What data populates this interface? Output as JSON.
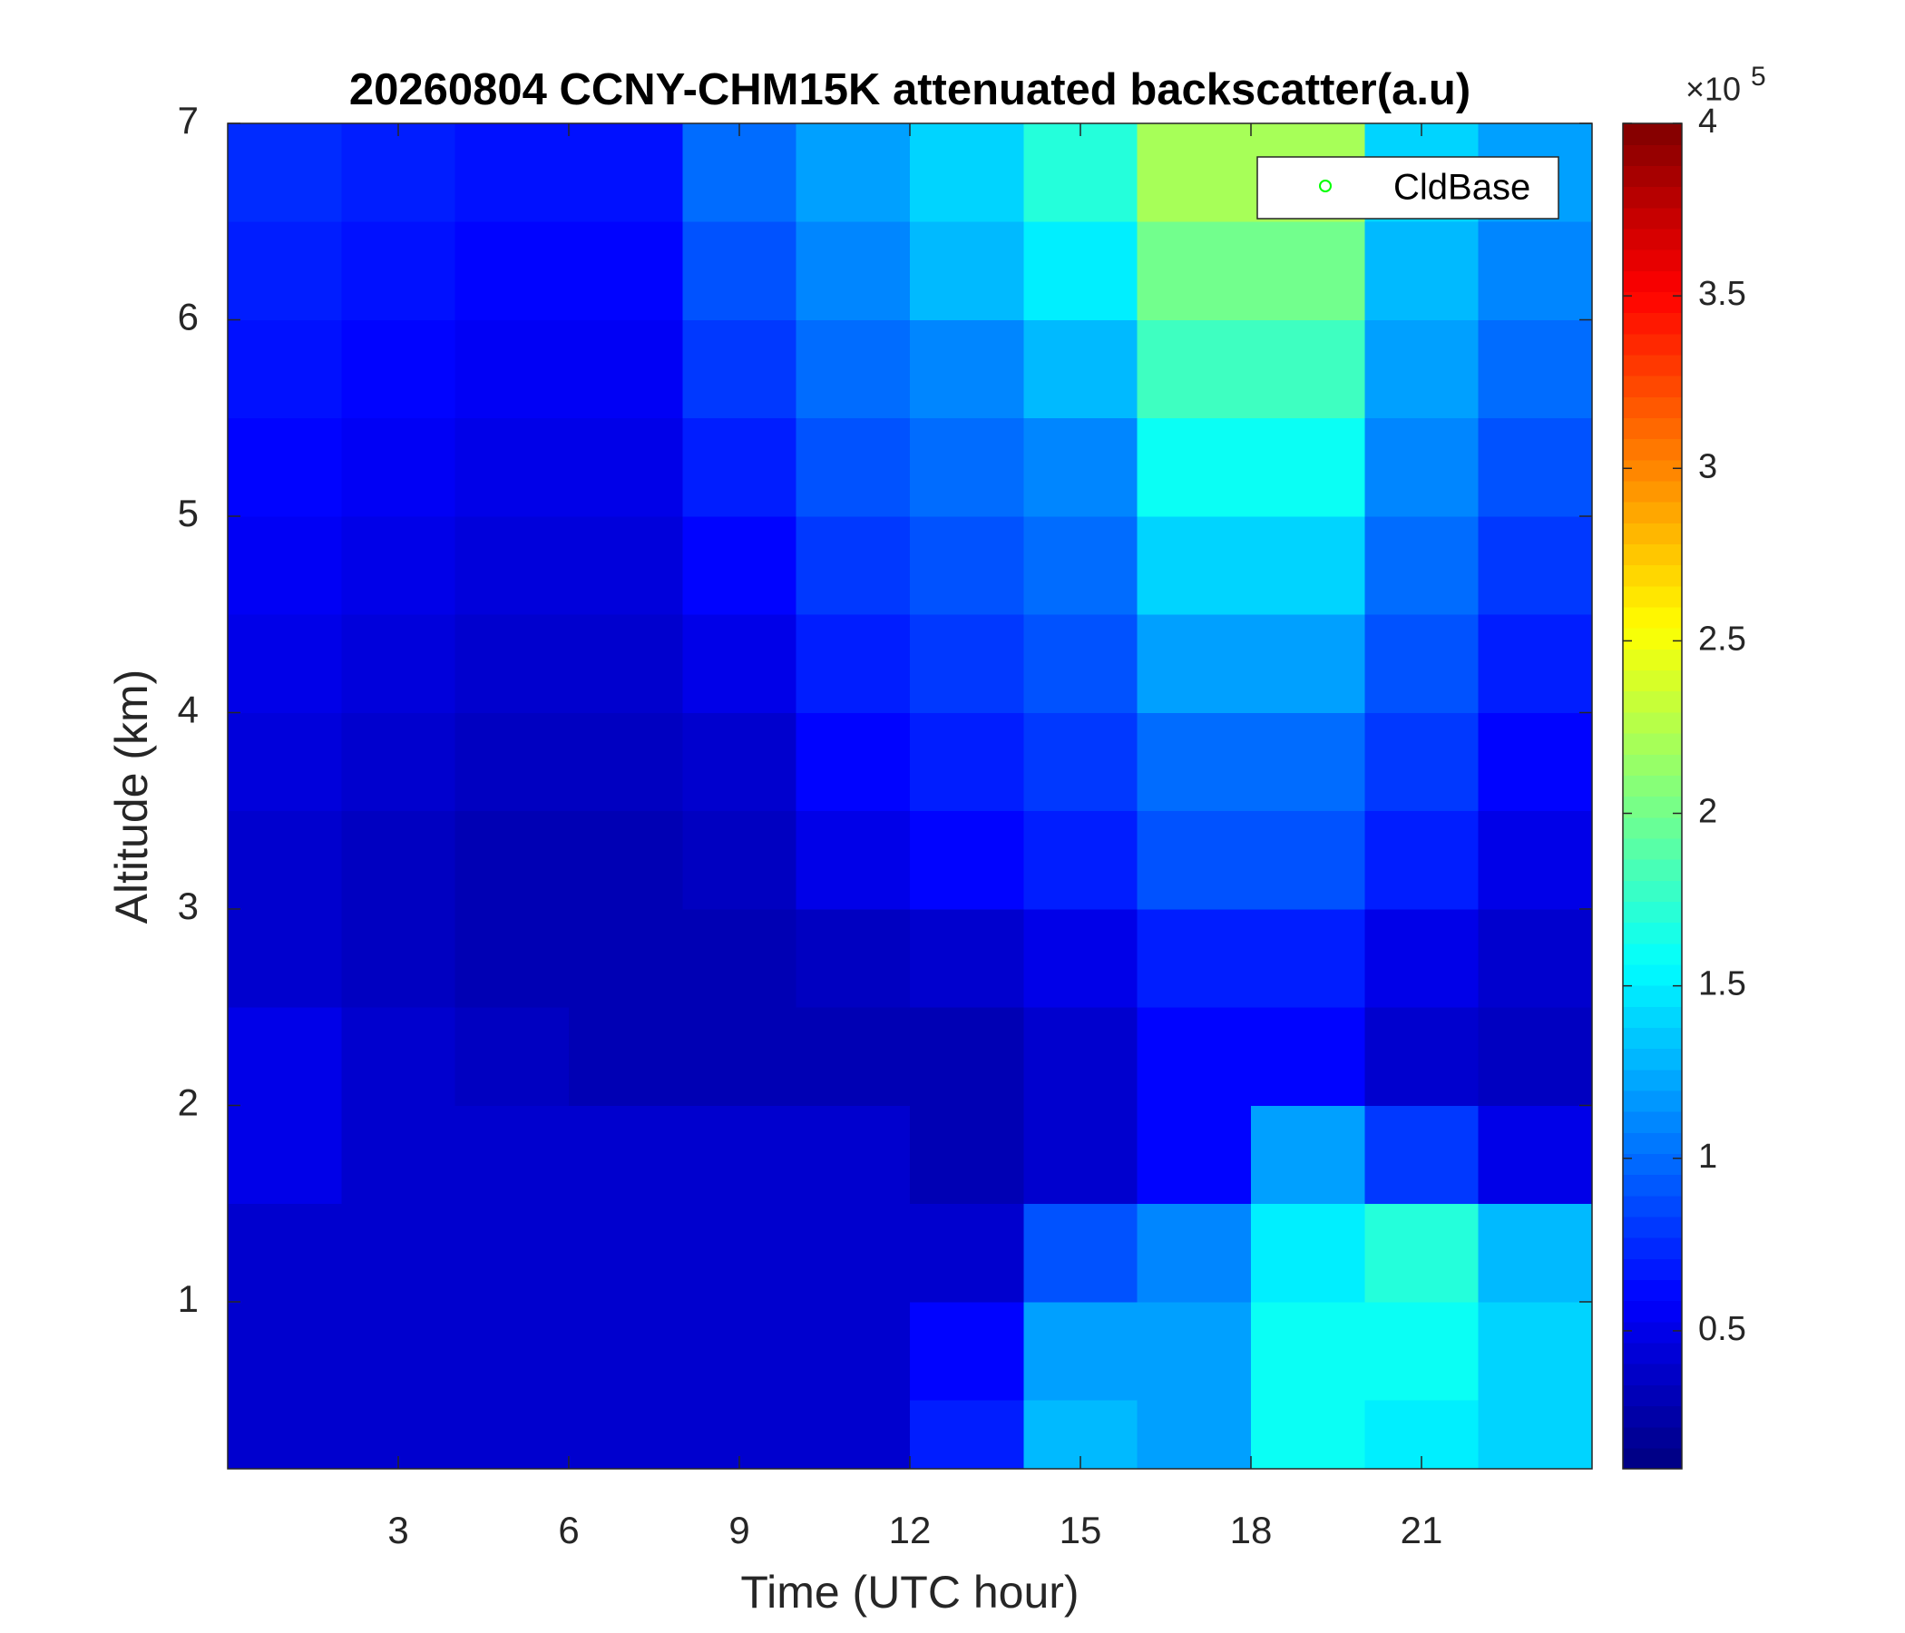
{
  "chart_data": {
    "type": "heatmap",
    "title": "20260804 CCNY-CHM15K attenuated backscatter(a.u)",
    "xlabel": "Time (UTC hour)",
    "ylabel": "Altitude (km)",
    "x_bins": [
      0,
      2,
      4,
      6,
      8,
      10,
      12,
      14,
      16,
      18,
      20,
      22,
      24
    ],
    "y_bins": [
      0.15,
      0.5,
      1,
      1.5,
      2,
      2.5,
      3,
      3.5,
      4,
      4.5,
      5,
      5.5,
      6,
      6.5,
      7
    ],
    "z": [
      [
        0.4,
        0.4,
        0.4,
        0.4,
        0.4,
        0.4,
        0.7,
        1.3,
        1.2,
        1.6,
        1.5,
        1.4
      ],
      [
        0.4,
        0.4,
        0.4,
        0.4,
        0.4,
        0.4,
        0.6,
        1.2,
        1.2,
        1.6,
        1.6,
        1.4
      ],
      [
        0.4,
        0.4,
        0.4,
        0.4,
        0.4,
        0.4,
        0.4,
        0.9,
        1.1,
        1.5,
        1.7,
        1.3
      ],
      [
        0.5,
        0.4,
        0.4,
        0.4,
        0.4,
        0.4,
        0.3,
        0.4,
        0.6,
        1.2,
        0.8,
        0.5
      ],
      [
        0.5,
        0.4,
        0.35,
        0.3,
        0.3,
        0.3,
        0.3,
        0.4,
        0.6,
        0.6,
        0.4,
        0.35
      ],
      [
        0.4,
        0.35,
        0.3,
        0.3,
        0.3,
        0.35,
        0.4,
        0.5,
        0.7,
        0.7,
        0.5,
        0.4
      ],
      [
        0.4,
        0.35,
        0.3,
        0.3,
        0.35,
        0.5,
        0.6,
        0.7,
        0.9,
        0.9,
        0.7,
        0.5
      ],
      [
        0.45,
        0.4,
        0.35,
        0.35,
        0.4,
        0.6,
        0.7,
        0.8,
        1.0,
        1.0,
        0.8,
        0.6
      ],
      [
        0.5,
        0.45,
        0.4,
        0.4,
        0.5,
        0.7,
        0.8,
        0.9,
        1.2,
        1.2,
        0.9,
        0.7
      ],
      [
        0.55,
        0.5,
        0.45,
        0.45,
        0.6,
        0.8,
        0.9,
        1.0,
        1.4,
        1.4,
        1.0,
        0.8
      ],
      [
        0.6,
        0.55,
        0.5,
        0.5,
        0.7,
        0.9,
        1.0,
        1.1,
        1.6,
        1.6,
        1.1,
        0.9
      ],
      [
        0.65,
        0.6,
        0.55,
        0.55,
        0.8,
        1.0,
        1.1,
        1.3,
        1.8,
        1.8,
        1.2,
        1.0
      ],
      [
        0.7,
        0.65,
        0.6,
        0.6,
        0.9,
        1.1,
        1.3,
        1.5,
        2.0,
        2.0,
        1.3,
        1.1
      ],
      [
        0.75,
        0.7,
        0.65,
        0.65,
        1.0,
        1.2,
        1.4,
        1.7,
        2.2,
        2.2,
        1.4,
        1.2
      ]
    ],
    "xlim": [
      0,
      24
    ],
    "xticks": [
      3,
      6,
      9,
      12,
      15,
      18,
      21
    ],
    "ylim": [
      0.15,
      7
    ],
    "yticks": [
      1,
      2,
      3,
      4,
      5,
      6,
      7
    ],
    "colormap": "jet",
    "colorbar": {
      "clim": [
        0.1,
        4
      ],
      "ticks": [
        0.5,
        1,
        1.5,
        2,
        2.5,
        3,
        3.5,
        4
      ],
      "multiplier": "×10",
      "exponent": 5
    },
    "series": [
      {
        "name": "CldBase",
        "color": "#00ff00",
        "marker": "circle",
        "values": []
      }
    ],
    "legend": "upper right"
  }
}
